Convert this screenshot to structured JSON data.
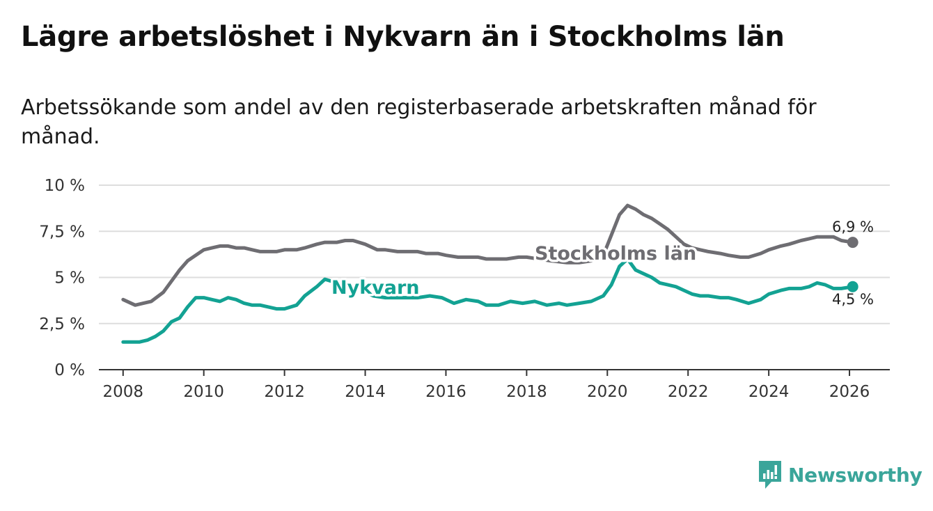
{
  "header": {
    "title": "Lägre arbetslöshet i Nykvarn än i Stockholms län",
    "subtitle": "Arbetssökande som andel av den registerbaserade arbetskraften månad för månad."
  },
  "brand": {
    "name": "Newsworthy",
    "icon": "newsworthy-logo-icon",
    "color": "#3aa59a"
  },
  "colors": {
    "stockholm": "#6e6d72",
    "nykvarn": "#13a293",
    "grid": "#dddddd",
    "axis": "#333333"
  },
  "chart_data": {
    "type": "line",
    "title": "Lägre arbetslöshet i Nykvarn än i Stockholms län",
    "subtitle": "Arbetssökande som andel av den registerbaserade arbetskraften månad för månad.",
    "xlabel": "",
    "ylabel": "",
    "xlim": [
      2007.4,
      2027.0
    ],
    "ylim": [
      0,
      10
    ],
    "grid": true,
    "y_ticks": [
      0,
      2.5,
      5,
      7.5,
      10
    ],
    "y_tick_labels": [
      "0 %",
      "2,5 %",
      "5 %",
      "7,5 %",
      "10 %"
    ],
    "x_ticks": [
      2008,
      2010,
      2012,
      2014,
      2016,
      2018,
      2020,
      2022,
      2024,
      2026
    ],
    "x_tick_labels": [
      "2008",
      "2010",
      "2012",
      "2014",
      "2016",
      "2018",
      "2020",
      "2022",
      "2024",
      "2026"
    ],
    "series": [
      {
        "name": "Stockholms län",
        "label": "Stockholms län",
        "end_label": "6,9 %",
        "x": [
          2008.0,
          2008.3,
          2008.5,
          2008.7,
          2009.0,
          2009.2,
          2009.4,
          2009.6,
          2009.8,
          2010.0,
          2010.2,
          2010.4,
          2010.6,
          2010.8,
          2011.0,
          2011.2,
          2011.4,
          2011.6,
          2011.8,
          2012.0,
          2012.3,
          2012.5,
          2012.8,
          2013.0,
          2013.3,
          2013.5,
          2013.7,
          2014.0,
          2014.3,
          2014.5,
          2014.8,
          2015.0,
          2015.3,
          2015.5,
          2015.8,
          2016.0,
          2016.3,
          2016.5,
          2016.8,
          2017.0,
          2017.3,
          2017.5,
          2017.8,
          2018.0,
          2018.3,
          2018.6,
          2019.0,
          2019.3,
          2019.6,
          2019.9,
          2020.1,
          2020.3,
          2020.5,
          2020.7,
          2020.9,
          2021.1,
          2021.3,
          2021.5,
          2021.7,
          2021.9,
          2022.1,
          2022.3,
          2022.5,
          2022.8,
          2023.0,
          2023.3,
          2023.5,
          2023.8,
          2024.0,
          2024.3,
          2024.5,
          2024.8,
          2025.0,
          2025.2,
          2025.4,
          2025.6,
          2025.8,
          2026.08
        ],
        "values": [
          3.8,
          3.5,
          3.6,
          3.7,
          4.2,
          4.8,
          5.4,
          5.9,
          6.2,
          6.5,
          6.6,
          6.7,
          6.7,
          6.6,
          6.6,
          6.5,
          6.4,
          6.4,
          6.4,
          6.5,
          6.5,
          6.6,
          6.8,
          6.9,
          6.9,
          7.0,
          7.0,
          6.8,
          6.5,
          6.5,
          6.4,
          6.4,
          6.4,
          6.3,
          6.3,
          6.2,
          6.1,
          6.1,
          6.1,
          6.0,
          6.0,
          6.0,
          6.1,
          6.1,
          6.0,
          5.9,
          5.8,
          5.8,
          5.9,
          6.2,
          7.3,
          8.4,
          8.9,
          8.7,
          8.4,
          8.2,
          7.9,
          7.6,
          7.2,
          6.8,
          6.6,
          6.5,
          6.4,
          6.3,
          6.2,
          6.1,
          6.1,
          6.3,
          6.5,
          6.7,
          6.8,
          7.0,
          7.1,
          7.2,
          7.2,
          7.2,
          7.0,
          6.9
        ]
      },
      {
        "name": "Nykvarn",
        "label": "Nykvarn",
        "end_label": "4,5 %",
        "x": [
          2008.0,
          2008.2,
          2008.4,
          2008.6,
          2008.8,
          2009.0,
          2009.2,
          2009.4,
          2009.6,
          2009.8,
          2010.0,
          2010.2,
          2010.4,
          2010.6,
          2010.8,
          2011.0,
          2011.2,
          2011.4,
          2011.6,
          2011.8,
          2012.0,
          2012.3,
          2012.5,
          2012.8,
          2013.0,
          2013.3,
          2013.6,
          2013.9,
          2014.2,
          2014.5,
          2014.8,
          2015.0,
          2015.3,
          2015.6,
          2015.9,
          2016.2,
          2016.5,
          2016.8,
          2017.0,
          2017.3,
          2017.6,
          2017.9,
          2018.2,
          2018.5,
          2018.8,
          2019.0,
          2019.3,
          2019.6,
          2019.9,
          2020.1,
          2020.3,
          2020.5,
          2020.7,
          2020.9,
          2021.1,
          2021.3,
          2021.5,
          2021.7,
          2021.9,
          2022.1,
          2022.3,
          2022.5,
          2022.8,
          2023.0,
          2023.2,
          2023.5,
          2023.8,
          2024.0,
          2024.3,
          2024.5,
          2024.8,
          2025.0,
          2025.2,
          2025.4,
          2025.6,
          2025.8,
          2026.08
        ],
        "values": [
          1.5,
          1.5,
          1.5,
          1.6,
          1.8,
          2.1,
          2.6,
          2.8,
          3.4,
          3.9,
          3.9,
          3.8,
          3.7,
          3.9,
          3.8,
          3.6,
          3.5,
          3.5,
          3.4,
          3.3,
          3.3,
          3.5,
          4.0,
          4.5,
          4.9,
          4.7,
          4.5,
          4.3,
          4.0,
          3.9,
          3.9,
          3.9,
          3.9,
          4.0,
          3.9,
          3.6,
          3.8,
          3.7,
          3.5,
          3.5,
          3.7,
          3.6,
          3.7,
          3.5,
          3.6,
          3.5,
          3.6,
          3.7,
          4.0,
          4.6,
          5.6,
          6.0,
          5.4,
          5.2,
          5.0,
          4.7,
          4.6,
          4.5,
          4.3,
          4.1,
          4.0,
          4.0,
          3.9,
          3.9,
          3.8,
          3.6,
          3.8,
          4.1,
          4.3,
          4.4,
          4.4,
          4.5,
          4.7,
          4.6,
          4.4,
          4.4,
          4.5
        ]
      }
    ]
  }
}
